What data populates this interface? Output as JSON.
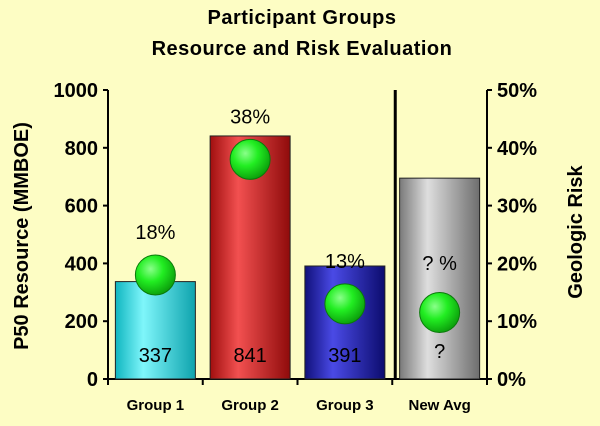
{
  "chart_data": {
    "type": "bar",
    "title": [
      "Participant Groups",
      "Resource and Risk Evaluation"
    ],
    "categories": [
      "Group 1",
      "Group 2",
      "Group 3",
      "New Avg"
    ],
    "series": [
      {
        "values": [
          337,
          841,
          391,
          695
        ],
        "value_labels": [
          "337",
          "841",
          "391",
          "?"
        ],
        "colors": [
          "#29e0e8",
          "#d41a1a",
          "#2222b8",
          "#a8a8a8"
        ]
      },
      {
        "axis": "right",
        "marker": "circle",
        "marker_color": "#22ee22",
        "values": [
          18,
          38,
          13,
          11.5
        ],
        "labels": [
          "18%",
          "38%",
          "13%",
          "? %"
        ]
      }
    ],
    "ylabel": "P50 Resource (MMBOE)",
    "y2label": "Geologic Risk",
    "ylim": [
      0,
      1000
    ],
    "y2lim": [
      0,
      50
    ],
    "yticks": [
      0,
      200,
      400,
      600,
      800,
      1000
    ],
    "y2ticks": [
      "0%",
      "10%",
      "20%",
      "30%",
      "40%",
      "50%"
    ],
    "grid": false,
    "legend": "none",
    "divider_before_category": "New Avg"
  }
}
